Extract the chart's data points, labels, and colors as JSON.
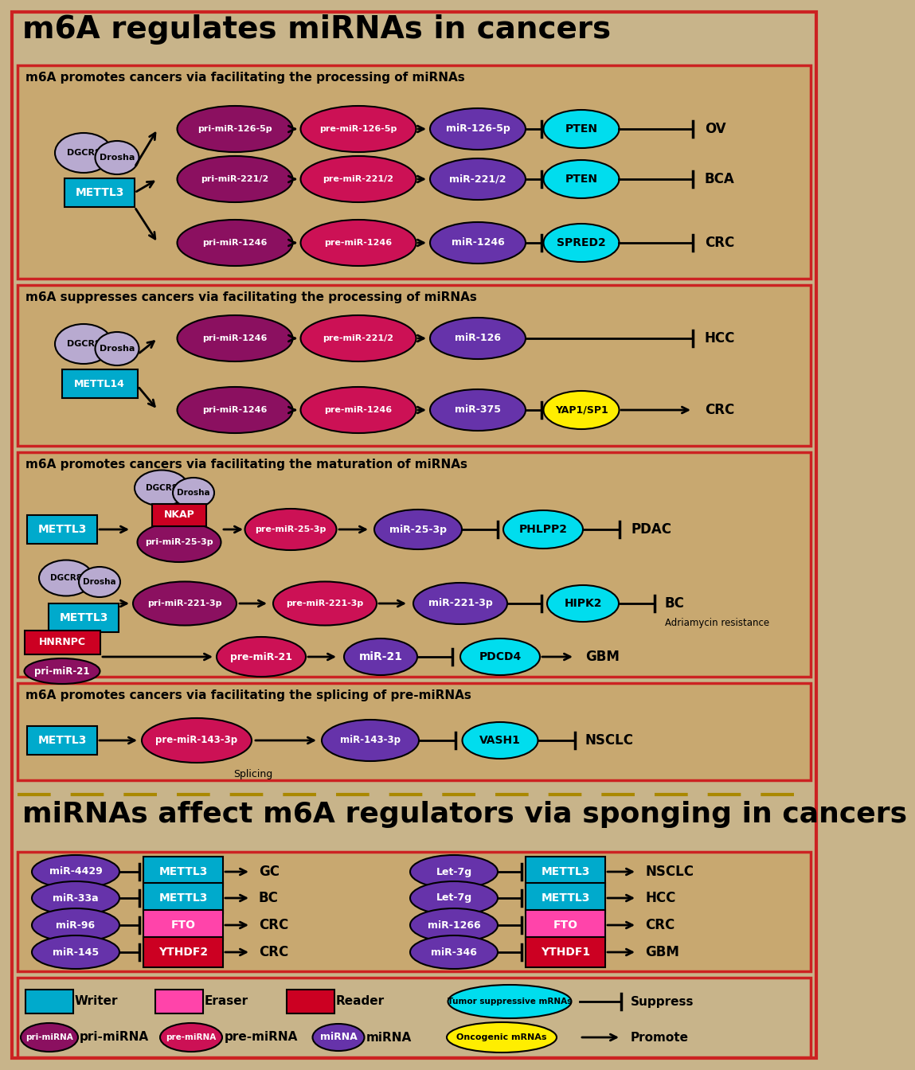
{
  "title_top": "m6A regulates miRNAs in cancers",
  "title_bottom": "miRNAs affect m6A regulators via sponging in cancers",
  "bg_outer": "#c8b48a",
  "bg_section": "#c8a870",
  "section_border": "#cc2222",
  "dashed_color": "#aa8800",
  "color_writer": "#00aacc",
  "color_eraser": "#ff44aa",
  "color_reader": "#cc0022",
  "color_pri_mirna": "#8b1060",
  "color_pre_mirna": "#cc1155",
  "color_mirna": "#6633aa",
  "color_tumor_sup": "#00ddee",
  "color_oncogenic": "#ffee00",
  "color_dgcr8_drosha": "#b8aad0",
  "white": "#ffffff",
  "black": "#000000"
}
